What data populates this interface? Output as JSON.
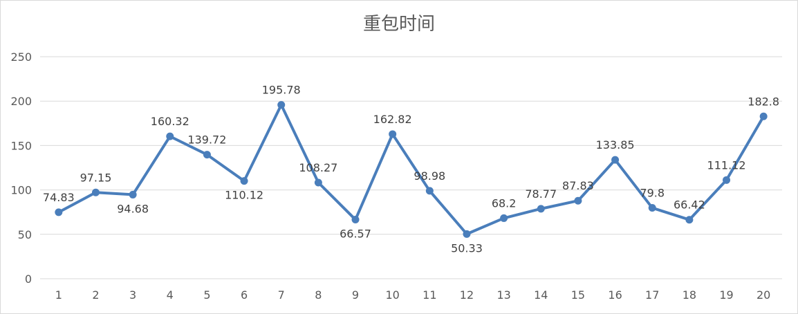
{
  "chart_data": {
    "type": "line",
    "title": "重包时间",
    "xlabel": "",
    "ylabel": "",
    "categories": [
      "1",
      "2",
      "3",
      "4",
      "5",
      "6",
      "7",
      "8",
      "9",
      "10",
      "11",
      "12",
      "13",
      "14",
      "15",
      "16",
      "17",
      "18",
      "19",
      "20"
    ],
    "series": [
      {
        "values": [
          74.83,
          97.15,
          94.68,
          160.32,
          139.72,
          110.12,
          195.78,
          108.27,
          66.57,
          162.82,
          98.98,
          50.33,
          68.2,
          78.77,
          87.83,
          133.85,
          79.8,
          66.42,
          111.12,
          182.8
        ],
        "labels": [
          "74.83",
          "97.15",
          "94.68",
          "160.32",
          "139.72",
          "110.12",
          "195.78",
          "108.27",
          "66.57",
          "162.82",
          "98.98",
          "50.33",
          "68.2",
          "78.77",
          "87.83",
          "133.85",
          "79.8",
          "66.42",
          "111.12",
          "182.8"
        ],
        "label_positions": [
          "above",
          "above",
          "below",
          "above",
          "above",
          "below",
          "above",
          "above",
          "below",
          "above",
          "above",
          "below",
          "above",
          "above",
          "above",
          "above",
          "above",
          "above",
          "above",
          "above"
        ],
        "color": "#4a7ebb"
      }
    ],
    "yticks": [
      "0",
      "50",
      "100",
      "150",
      "200",
      "250"
    ],
    "ylim": [
      0,
      250
    ],
    "grid": true,
    "legend": "none",
    "markers": true
  }
}
